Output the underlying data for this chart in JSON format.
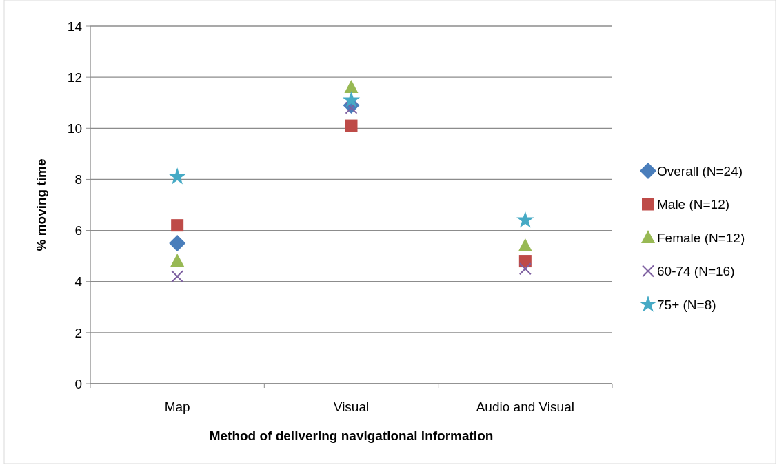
{
  "chart_data": {
    "type": "scatter",
    "xlabel": "Method of delivering navigational information",
    "ylabel": "% moving time",
    "categories": [
      "Map",
      "Visual",
      "Audio and Visual"
    ],
    "ylim": [
      0,
      14
    ],
    "yticks": [
      0,
      2,
      4,
      6,
      8,
      10,
      12,
      14
    ],
    "grid": "y",
    "legend": "right",
    "series": [
      {
        "name": "Overall (N=24)",
        "color": "#4a7ebb",
        "marker": "diamond",
        "values": [
          5.5,
          10.9,
          null
        ]
      },
      {
        "name": "Male (N=12)",
        "color": "#be4b48",
        "marker": "square",
        "values": [
          6.2,
          10.1,
          4.8
        ]
      },
      {
        "name": "Female (N=12)",
        "color": "#98b954",
        "marker": "triangle",
        "values": [
          4.8,
          11.6,
          5.4
        ]
      },
      {
        "name": "60-74 (N=16)",
        "color": "#7d5fa0",
        "marker": "cross",
        "values": [
          4.2,
          10.8,
          4.5
        ]
      },
      {
        "name": "75+ (N=8)",
        "color": "#46aac5",
        "marker": "star",
        "values": [
          8.1,
          11.1,
          6.4
        ]
      }
    ]
  }
}
